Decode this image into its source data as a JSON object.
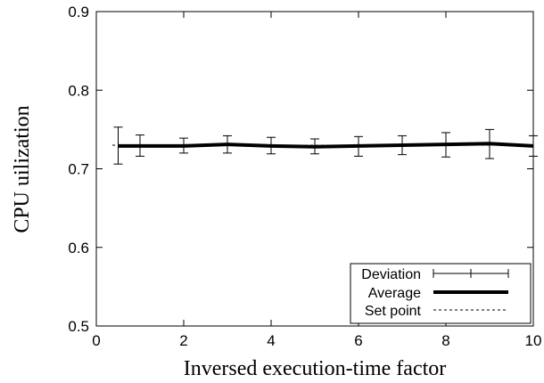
{
  "chart_data": {
    "type": "line",
    "xlabel": "Inversed execution-time factor",
    "ylabel": "CPU uilization",
    "xlim": [
      0,
      10
    ],
    "ylim": [
      0.5,
      0.9
    ],
    "xticks": [
      0,
      2,
      4,
      6,
      8,
      10
    ],
    "yticks": [
      0.5,
      0.6,
      0.7,
      0.8,
      0.9
    ],
    "grid": false,
    "legend_position": "bottom-right",
    "series": [
      {
        "name": "Deviation",
        "kind": "errorbar",
        "points": [
          {
            "x": 0.5,
            "y": 0.729,
            "low": 0.706,
            "high": 0.753
          },
          {
            "x": 1,
            "y": 0.729,
            "low": 0.716,
            "high": 0.743
          },
          {
            "x": 2,
            "y": 0.729,
            "low": 0.72,
            "high": 0.739
          },
          {
            "x": 3,
            "y": 0.731,
            "low": 0.72,
            "high": 0.742
          },
          {
            "x": 4,
            "y": 0.729,
            "low": 0.719,
            "high": 0.74
          },
          {
            "x": 5,
            "y": 0.728,
            "low": 0.719,
            "high": 0.738
          },
          {
            "x": 6,
            "y": 0.729,
            "low": 0.716,
            "high": 0.741
          },
          {
            "x": 7,
            "y": 0.73,
            "low": 0.718,
            "high": 0.742
          },
          {
            "x": 8,
            "y": 0.731,
            "low": 0.715,
            "high": 0.746
          },
          {
            "x": 9,
            "y": 0.732,
            "low": 0.713,
            "high": 0.75
          },
          {
            "x": 10,
            "y": 0.729,
            "low": 0.716,
            "high": 0.742
          }
        ]
      },
      {
        "name": "Average",
        "kind": "line",
        "x": [
          0.5,
          1,
          2,
          3,
          4,
          5,
          6,
          7,
          8,
          9,
          10
        ],
        "y": [
          0.729,
          0.729,
          0.729,
          0.731,
          0.729,
          0.728,
          0.729,
          0.73,
          0.731,
          0.732,
          0.729
        ]
      },
      {
        "name": "Set point",
        "kind": "dashed-line",
        "x": [
          0,
          10
        ],
        "y": [
          0.73,
          0.73
        ]
      }
    ]
  }
}
